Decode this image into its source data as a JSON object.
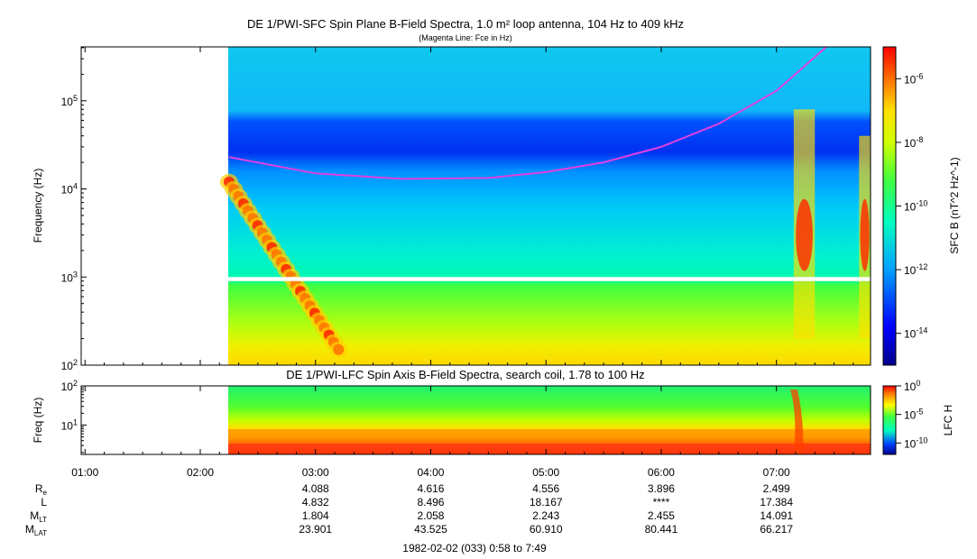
{
  "chart_data": [
    {
      "type": "heatmap",
      "title": "DE 1/PWI-SFC  Spin Plane B-Field Spectra, 1.0 m² loop antenna, 104 Hz to 409 kHz",
      "subtitle": "(Magenta Line: Fce in Hz)",
      "ylabel": "Frequency (Hz)",
      "yscale": "log",
      "ylim": [
        100,
        409000
      ],
      "y_ticks": [
        "10^2",
        "10^3",
        "10^4",
        "10^5"
      ],
      "xlim": [
        "00:58",
        "07:49"
      ],
      "data_start": "02:15",
      "colorbar": {
        "label": "SFC B (nT^2 Hz^-1)",
        "scale": "log",
        "range": [
          1e-15,
          1e-05
        ],
        "ticks": [
          "10^-6",
          "10^-8",
          "10^-10",
          "10^-12",
          "10^-14"
        ]
      },
      "gaps": [
        {
          "freq_low_hz": 900,
          "freq_high_hz": 1000
        }
      ],
      "overlay": {
        "name": "Fce",
        "color": "#e040e0",
        "points": [
          {
            "t": "02:15",
            "hz": 23000
          },
          {
            "t": "03:00",
            "hz": 15000
          },
          {
            "t": "03:45",
            "hz": 13000
          },
          {
            "t": "04:30",
            "hz": 13300
          },
          {
            "t": "05:00",
            "hz": 15500
          },
          {
            "t": "05:30",
            "hz": 20000
          },
          {
            "t": "06:00",
            "hz": 30000
          },
          {
            "t": "06:30",
            "hz": 55000
          },
          {
            "t": "07:00",
            "hz": 130000
          },
          {
            "t": "07:26",
            "hz": 409000
          }
        ]
      },
      "features": [
        {
          "t_start": "02:15",
          "t_end": "03:12",
          "hz_start": 12000,
          "hz_end": 150,
          "level": "high"
        },
        {
          "t_start": "07:09",
          "t_end": "07:20",
          "hz_start": 200,
          "hz_end": 80000,
          "level": "high"
        },
        {
          "t_start": "07:43",
          "t_end": "07:49",
          "hz_start": 200,
          "hz_end": 40000,
          "level": "high"
        }
      ]
    },
    {
      "type": "heatmap",
      "title": "DE 1/PWI-LFC  Spin Axis B-Field Spectra, search coil, 1.78 to 100 Hz",
      "ylabel": "Freq (Hz)",
      "yscale": "log",
      "ylim": [
        1.78,
        100
      ],
      "y_ticks": [
        "10^1",
        "10^2"
      ],
      "xlim": [
        "00:58",
        "07:49"
      ],
      "data_start": "02:15",
      "colorbar": {
        "label": "LFC H",
        "scale": "log",
        "range": [
          1e-12,
          1
        ],
        "ticks": [
          "10^0",
          "10^-5",
          "10^-10"
        ]
      }
    }
  ],
  "x_axis": {
    "ticks": [
      "01:00",
      "02:00",
      "03:00",
      "04:00",
      "05:00",
      "06:00",
      "07:00"
    ],
    "footer": "1982-02-02 (033) 0:58 to 7:49"
  },
  "ephemeris": {
    "rows": [
      {
        "label": "R",
        "sub": "e",
        "values": [
          "4.088",
          "4.616",
          "4.556",
          "3.896",
          "2.499"
        ]
      },
      {
        "label": "L",
        "sub": "",
        "values": [
          "4.832",
          "8.496",
          "18.167",
          "****",
          "17.384"
        ]
      },
      {
        "label": "M",
        "sub": "LT",
        "values": [
          "1.804",
          "2.058",
          "2.243",
          "2.455",
          "14.091"
        ]
      },
      {
        "label": "M",
        "sub": "LAT",
        "values": [
          "23.901",
          "43.525",
          "60.910",
          "80.441",
          "66.217"
        ]
      }
    ]
  }
}
